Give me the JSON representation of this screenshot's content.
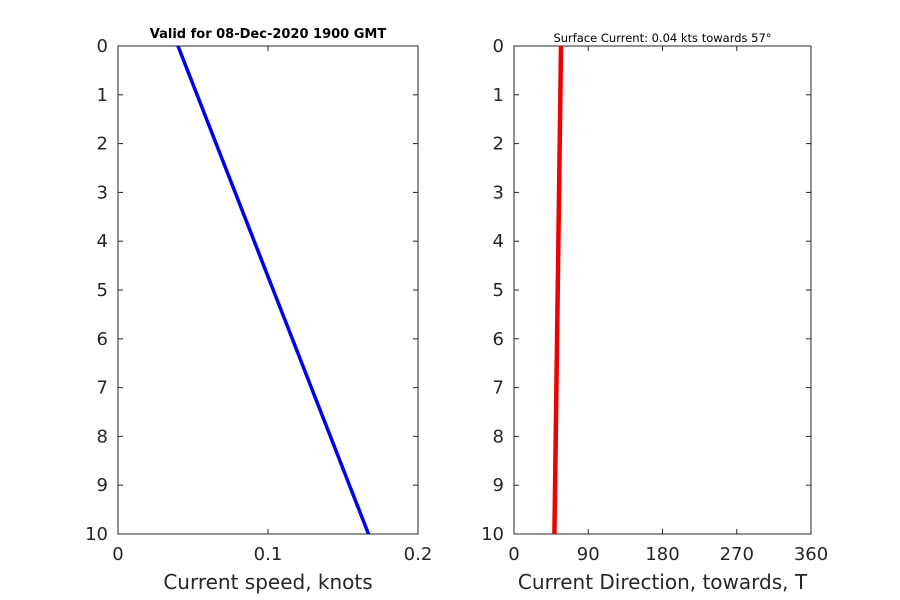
{
  "chart_data": [
    {
      "type": "line",
      "title": "Valid for 08-Dec-2020 1900 GMT",
      "xlabel": "Current speed, knots",
      "ylabel": "",
      "xlim": [
        0,
        0.2
      ],
      "ylim": [
        0,
        10
      ],
      "y_reversed": true,
      "xticks": [
        "0",
        "0.1",
        "0.2"
      ],
      "yticks": [
        "0",
        "1",
        "2",
        "3",
        "4",
        "5",
        "6",
        "7",
        "8",
        "9",
        "10"
      ],
      "grid": false,
      "color": "#0000ee",
      "x": [
        0.04,
        0.0527,
        0.0654,
        0.0781,
        0.0908,
        0.1035,
        0.1162,
        0.1289,
        0.1416,
        0.1543,
        0.167
      ],
      "y": [
        0,
        1,
        2,
        3,
        4,
        5,
        6,
        7,
        8,
        9,
        10
      ]
    },
    {
      "type": "line",
      "title": "Surface Current: 0.04 kts towards 57°",
      "xlabel": "Current Direction, towards, T",
      "ylabel": "",
      "xlim": [
        0,
        360
      ],
      "ylim": [
        0,
        10
      ],
      "y_reversed": true,
      "xticks": [
        "0",
        "90",
        "180",
        "270",
        "360"
      ],
      "yticks": [
        "0",
        "1",
        "2",
        "3",
        "4",
        "5",
        "6",
        "7",
        "8",
        "9",
        "10"
      ],
      "grid": false,
      "color": "#ee0000",
      "x": [
        57,
        56.2,
        55.4,
        54.6,
        53.8,
        53,
        52.2,
        51.4,
        50.6,
        49.8,
        49
      ],
      "y": [
        0,
        1,
        2,
        3,
        4,
        5,
        6,
        7,
        8,
        9,
        10
      ]
    }
  ]
}
